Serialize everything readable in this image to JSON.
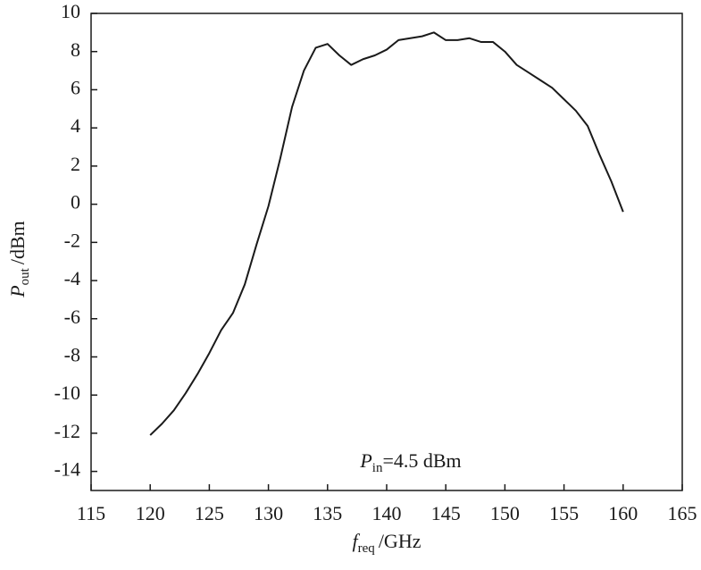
{
  "chart_data": {
    "type": "line",
    "x_label": {
      "symbol": "f",
      "subscript": "req",
      "unit": "/GHz"
    },
    "y_label": {
      "symbol": "P",
      "subscript": "out",
      "unit": "/dBm"
    },
    "annotation": {
      "symbol": "P",
      "subscript": "in",
      "text": "=4.5 dBm"
    },
    "x": [
      120,
      121,
      122,
      123,
      124,
      125,
      126,
      127,
      128,
      129,
      130,
      131,
      132,
      133,
      134,
      135,
      136,
      137,
      138,
      139,
      140,
      141,
      142,
      143,
      144,
      145,
      146,
      147,
      148,
      149,
      150,
      151,
      152,
      153,
      154,
      155,
      156,
      157,
      158,
      159,
      160
    ],
    "values": [
      -12.1,
      -11.5,
      -10.8,
      -9.9,
      -8.9,
      -7.8,
      -6.6,
      -5.7,
      -4.2,
      -2.1,
      -0.1,
      2.4,
      5.1,
      7.0,
      8.2,
      8.4,
      7.8,
      7.3,
      7.6,
      7.8,
      8.1,
      8.6,
      8.7,
      8.8,
      9.0,
      8.6,
      8.6,
      8.7,
      8.5,
      8.5,
      8.0,
      7.3,
      6.9,
      6.5,
      6.1,
      5.5,
      4.9,
      4.1,
      2.6,
      1.2,
      -0.4
    ],
    "color": "#1a1a1a",
    "xlim": [
      115,
      165
    ],
    "xticks": [
      115,
      120,
      125,
      130,
      135,
      140,
      145,
      150,
      155,
      160,
      165
    ],
    "ylim": [
      -15,
      10
    ],
    "yticks": [
      -14,
      -12,
      -10,
      -8,
      -6,
      -4,
      -2,
      0,
      2,
      4,
      6,
      8,
      10
    ],
    "grid": false
  }
}
